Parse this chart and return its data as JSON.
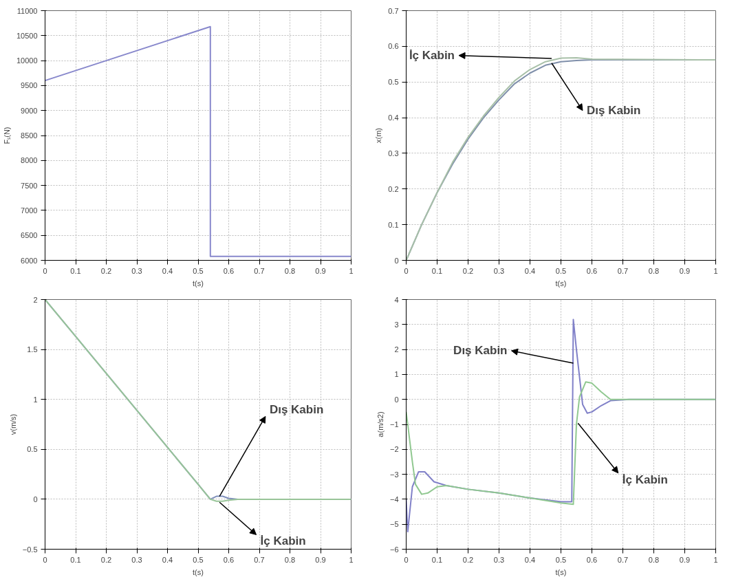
{
  "chart_data": [
    {
      "type": "line",
      "xlabel": "t(s)",
      "ylabel": "Fₛ(N)",
      "xlim": [
        0,
        1
      ],
      "ylim": [
        6000,
        11000
      ],
      "xticks": [
        0,
        0.1,
        0.2,
        0.3,
        0.4,
        0.5,
        0.6,
        0.7,
        0.8,
        0.9,
        1
      ],
      "yticks": [
        6000,
        6500,
        7000,
        7500,
        8000,
        8500,
        9000,
        9500,
        10000,
        10500,
        11000
      ],
      "grid": true,
      "series": [
        {
          "color": "#8888cc",
          "x": [
            0,
            0.54,
            0.54,
            1
          ],
          "values": [
            9600,
            10680,
            6080,
            6080
          ]
        }
      ]
    },
    {
      "type": "line",
      "xlabel": "t(s)",
      "ylabel": "x(m)",
      "xlim": [
        0,
        1
      ],
      "ylim": [
        0,
        0.7
      ],
      "xticks": [
        0,
        0.1,
        0.2,
        0.3,
        0.4,
        0.5,
        0.6,
        0.7,
        0.8,
        0.9,
        1
      ],
      "yticks": [
        0,
        0.1,
        0.2,
        0.3,
        0.4,
        0.5,
        0.6,
        0.7
      ],
      "grid": true,
      "series": [
        {
          "color": "#7f8faa",
          "x": [
            0,
            0.05,
            0.1,
            0.15,
            0.2,
            0.25,
            0.3,
            0.35,
            0.4,
            0.45,
            0.5,
            0.55,
            0.6,
            1
          ],
          "values": [
            0,
            0.1,
            0.19,
            0.27,
            0.34,
            0.4,
            0.45,
            0.495,
            0.525,
            0.547,
            0.557,
            0.56,
            0.562,
            0.562
          ]
        },
        {
          "color": "#a8c0a8",
          "x": [
            0,
            0.05,
            0.1,
            0.15,
            0.2,
            0.25,
            0.3,
            0.35,
            0.4,
            0.45,
            0.5,
            0.55,
            0.6,
            1
          ],
          "values": [
            0,
            0.1,
            0.19,
            0.275,
            0.345,
            0.405,
            0.457,
            0.503,
            0.535,
            0.557,
            0.567,
            0.568,
            0.564,
            0.562
          ]
        }
      ],
      "annotations": [
        {
          "text": "İç Kabin",
          "x": 0.47,
          "y": 0.566
        },
        {
          "text": "Dış Kabin",
          "x": 0.47,
          "y": 0.553
        }
      ]
    },
    {
      "type": "line",
      "xlabel": "t(s)",
      "ylabel": "v(m/s)",
      "xlim": [
        0,
        1
      ],
      "ylim": [
        -0.5,
        2
      ],
      "xticks": [
        0,
        0.1,
        0.2,
        0.3,
        0.4,
        0.5,
        0.6,
        0.7,
        0.8,
        0.9,
        1
      ],
      "yticks": [
        -0.5,
        0,
        0.5,
        1,
        1.5,
        2
      ],
      "grid": true,
      "series": [
        {
          "color": "#7f8fbb",
          "x": [
            0,
            0.1,
            0.2,
            0.3,
            0.4,
            0.5,
            0.54,
            0.56,
            0.58,
            0.6,
            0.63,
            1
          ],
          "values": [
            2,
            1.63,
            1.26,
            0.89,
            0.52,
            0.15,
            0,
            0.03,
            0.03,
            0.01,
            0,
            0
          ]
        },
        {
          "color": "#98c498",
          "x": [
            0,
            0.1,
            0.2,
            0.3,
            0.4,
            0.5,
            0.54,
            0.56,
            0.58,
            0.6,
            0.63,
            1
          ],
          "values": [
            2,
            1.63,
            1.26,
            0.89,
            0.52,
            0.15,
            0,
            -0.02,
            -0.02,
            -0.01,
            0,
            0
          ]
        }
      ],
      "annotations": [
        {
          "text": "Dış Kabin",
          "x": 0.57,
          "y": 0.03
        },
        {
          "text": "İç Kabin",
          "x": 0.57,
          "y": -0.03
        }
      ]
    },
    {
      "type": "line",
      "xlabel": "t(s)",
      "ylabel": "a(m/s2)",
      "xlim": [
        0,
        1
      ],
      "ylim": [
        -6,
        4
      ],
      "xticks": [
        0,
        0.1,
        0.2,
        0.3,
        0.4,
        0.5,
        0.6,
        0.7,
        0.8,
        0.9,
        1
      ],
      "yticks": [
        -6,
        -5,
        -4,
        -3,
        -2,
        -1,
        0,
        1,
        2,
        3,
        4
      ],
      "grid": true,
      "series": [
        {
          "color": "#8080c8",
          "x": [
            0,
            0.005,
            0.02,
            0.04,
            0.06,
            0.09,
            0.13,
            0.2,
            0.3,
            0.4,
            0.5,
            0.535,
            0.54,
            0.55,
            0.57,
            0.585,
            0.6,
            0.63,
            0.66,
            0.72,
            1
          ],
          "values": [
            -4,
            -5.3,
            -3.5,
            -2.9,
            -2.9,
            -3.3,
            -3.45,
            -3.6,
            -3.75,
            -3.95,
            -4.1,
            -4.1,
            3.2,
            2.0,
            -0.2,
            -0.55,
            -0.5,
            -0.25,
            -0.05,
            0,
            0
          ]
        },
        {
          "color": "#90c890",
          "x": [
            0,
            0.02,
            0.03,
            0.05,
            0.07,
            0.1,
            0.13,
            0.2,
            0.3,
            0.4,
            0.5,
            0.54,
            0.55,
            0.56,
            0.58,
            0.6,
            0.63,
            0.66,
            1
          ],
          "values": [
            -0.5,
            -2.5,
            -3.4,
            -3.8,
            -3.75,
            -3.5,
            -3.45,
            -3.6,
            -3.75,
            -3.95,
            -4.15,
            -4.2,
            -1,
            0.1,
            0.7,
            0.65,
            0.3,
            0,
            0
          ]
        }
      ],
      "annotations": [
        {
          "text": "Dış Kabin",
          "x": 0.54,
          "y": 1.45
        },
        {
          "text": "İç Kabin",
          "x": 0.555,
          "y": -0.95
        }
      ]
    }
  ]
}
